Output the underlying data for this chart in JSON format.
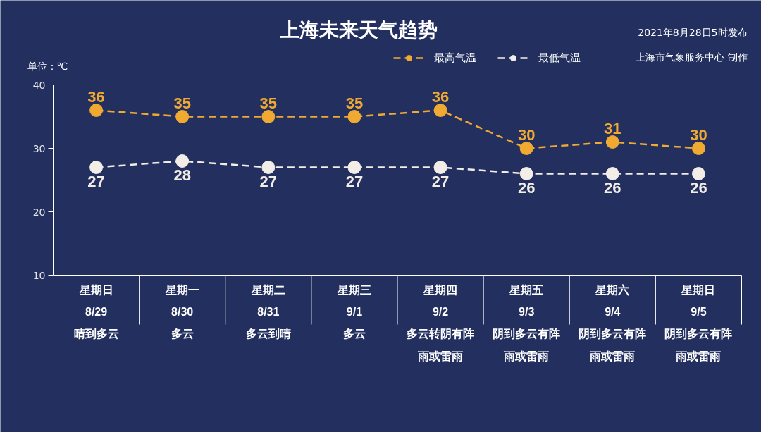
{
  "chart_data": {
    "type": "line",
    "title": "上海未来天气趋势",
    "ylabel": "单位：℃",
    "annotations": [
      "2021年8月28日5时发布",
      "上海市气象服务中心 制作"
    ],
    "categories": [
      "星期日\n8/29\n晴到多云",
      "星期一\n8/30\n多云",
      "星期二\n8/31\n多云到晴",
      "星期三\n9/1\n多云",
      "星期四\n9/2\n多云转阴有阵雨或雷雨",
      "星期五\n9/3\n阴到多云有阵雨或雷雨",
      "星期六\n9/4\n阴到多云有阵雨或雷雨",
      "星期日\n9/5\n阴到多云有阵雨或雷雨"
    ],
    "series": [
      {
        "name": "最高气温",
        "color": "#f0aa32",
        "values": [
          36,
          35,
          35,
          35,
          36,
          30,
          31,
          30
        ]
      },
      {
        "name": "最低气温",
        "color": "#f2ede6",
        "values": [
          27,
          28,
          27,
          27,
          27,
          26,
          26,
          26
        ]
      }
    ],
    "ylim": [
      10,
      40
    ],
    "yticks": [
      10,
      20,
      30,
      40
    ],
    "grid": false,
    "legend": "top",
    "marker": "circle",
    "line_style": "dashed",
    "data_labels": true
  }
}
